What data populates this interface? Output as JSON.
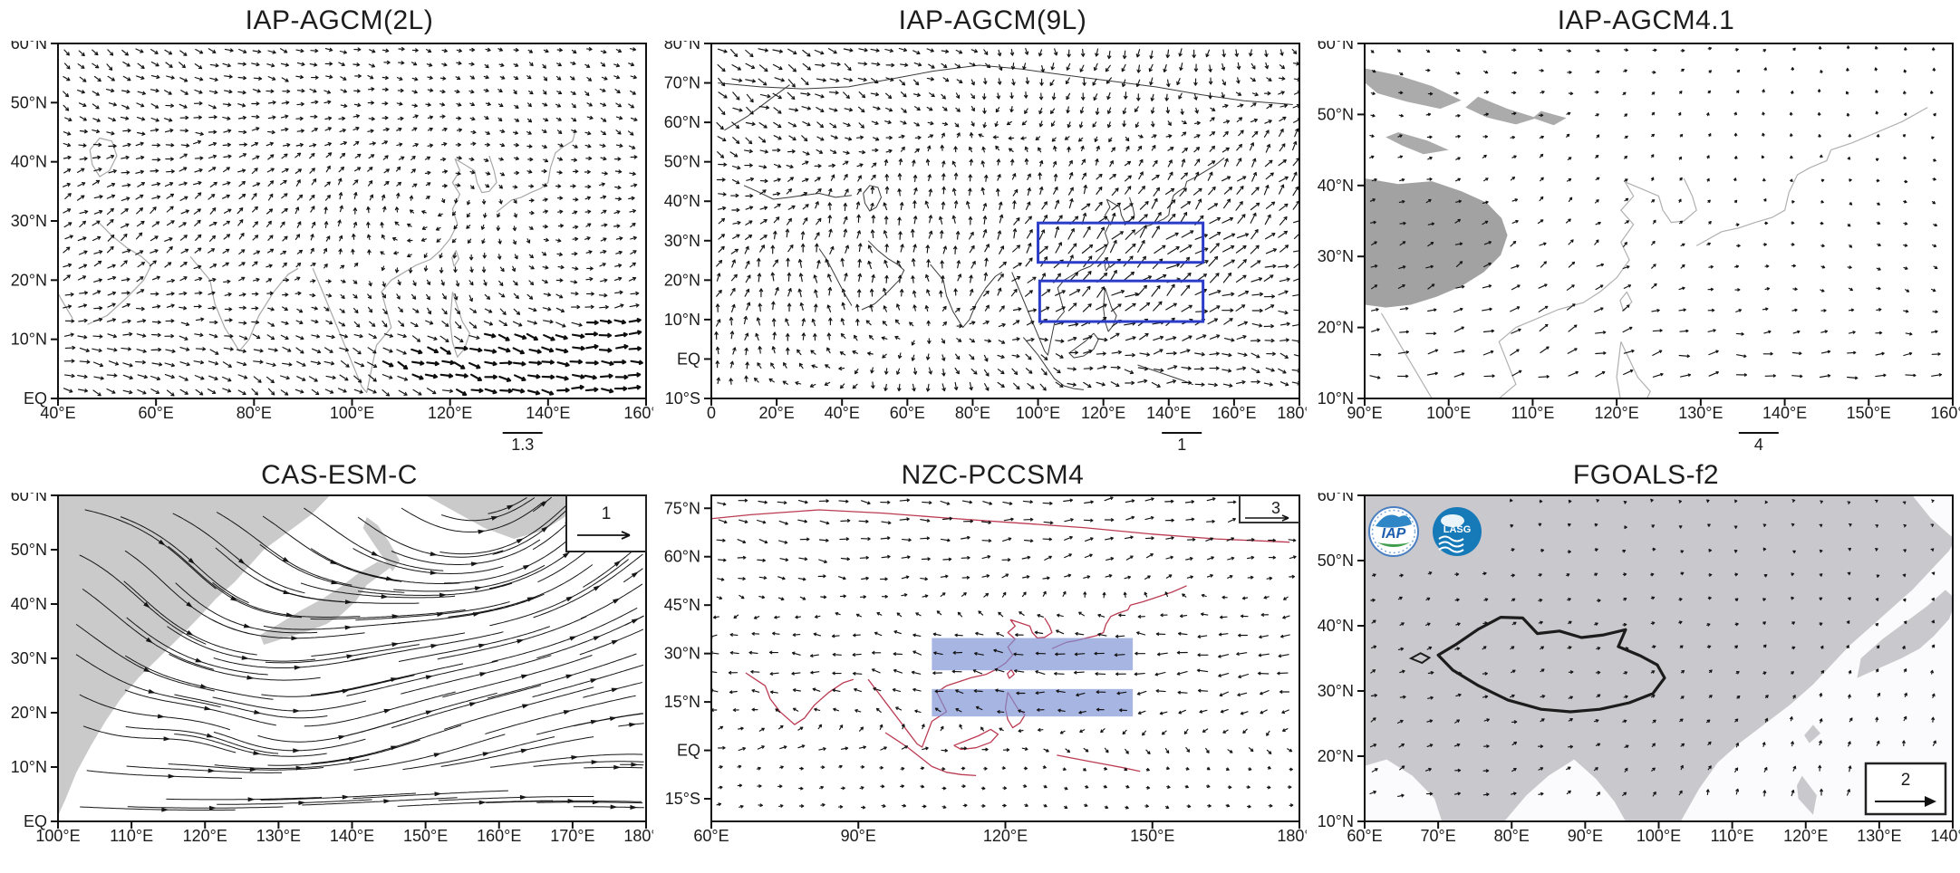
{
  "figure": {
    "description": "Six-panel comparison figure of simulated low-level wind vector fields over the Asian monsoon region from six IAP climate models",
    "grid": "2 rows x 3 columns",
    "background_color": "#ffffff",
    "vector_color": "#141414"
  },
  "chart_data": [
    {
      "type": "scatter",
      "plot_style": "wind vector (quiver) map",
      "title": "IAP-AGCM(2L)",
      "x_axis": {
        "label": "longitude",
        "range": [
          40,
          160
        ],
        "tick_values": [
          40,
          60,
          80,
          100,
          120,
          140,
          160
        ],
        "tick_labels": [
          "40°E",
          "60°E",
          "80°E",
          "100°E",
          "120°E",
          "140°E",
          "160°E"
        ]
      },
      "y_axis": {
        "label": "latitude",
        "range": [
          0,
          60
        ],
        "tick_values": [
          0,
          10,
          20,
          30,
          40,
          50,
          60
        ],
        "tick_labels": [
          "EQ",
          "10°N",
          "20°N",
          "30°N",
          "40°N",
          "50°N",
          "60°N"
        ]
      },
      "reference_vector": {
        "value": "1.3",
        "position": "bar below axis near 133°E"
      },
      "map_features": {
        "coastline_color": "#a8a8a8",
        "land_fill": "none"
      },
      "annotations": [],
      "grid_on": false,
      "legend_position": "none"
    },
    {
      "type": "scatter",
      "plot_style": "wind vector (quiver) map",
      "title": "IAP-AGCM(9L)",
      "x_axis": {
        "label": "longitude",
        "range": [
          0,
          180
        ],
        "tick_values": [
          0,
          20,
          40,
          60,
          80,
          100,
          120,
          140,
          160,
          180
        ],
        "tick_labels": [
          "0",
          "20°E",
          "40°E",
          "60°E",
          "80°E",
          "100°E",
          "120°E",
          "140°E",
          "160°E",
          "180°E"
        ]
      },
      "y_axis": {
        "label": "latitude",
        "range": [
          -10,
          80
        ],
        "tick_values": [
          -10,
          0,
          10,
          20,
          30,
          40,
          50,
          60,
          70,
          80
        ],
        "tick_labels": [
          "10°S",
          "EQ",
          "10°N",
          "20°N",
          "30°N",
          "40°N",
          "50°N",
          "60°N",
          "70°N",
          "80°N"
        ]
      },
      "reference_vector": {
        "value": "1",
        "position": "bar below axis near 135°E"
      },
      "map_features": {
        "coastline_color": "#3a3a3a",
        "land_fill": "none"
      },
      "annotations": [
        {
          "type": "box-outline",
          "color": "#2b3cc8",
          "lon": [
            100,
            150.5
          ],
          "lat": [
            24.5,
            34.5
          ]
        },
        {
          "type": "box-outline",
          "color": "#2b3cc8",
          "lon": [
            100.5,
            150.5
          ],
          "lat": [
            9.5,
            19.8
          ]
        }
      ],
      "grid_on": false,
      "legend_position": "none"
    },
    {
      "type": "scatter",
      "plot_style": "wind vector (quiver) map",
      "title": "IAP-AGCM4.1",
      "x_axis": {
        "label": "longitude",
        "range": [
          90,
          160
        ],
        "tick_values": [
          90,
          100,
          110,
          120,
          130,
          140,
          150,
          160
        ],
        "tick_labels": [
          "90°E",
          "100°E",
          "110°E",
          "120°E",
          "130°E",
          "140°E",
          "150°E",
          "160°E"
        ]
      },
      "y_axis": {
        "label": "latitude",
        "range": [
          10,
          60
        ],
        "tick_values": [
          10,
          20,
          30,
          40,
          50,
          60
        ],
        "tick_labels": [
          "10°N",
          "20°N",
          "30°N",
          "40°N",
          "50°N",
          "60°N"
        ]
      },
      "reference_vector": {
        "value": "4",
        "position": "bar below axis near 142°E"
      },
      "map_features": {
        "coastline_color": "#b0b0b0",
        "land_fill": "#a2a2a2 (Tibetan Plateau and northern terrain patches shaded gray)"
      },
      "annotations": [],
      "grid_on": false,
      "legend_position": "none"
    },
    {
      "type": "scatter",
      "plot_style": "streamline wind map",
      "title": "CAS-ESM-C",
      "x_axis": {
        "label": "longitude",
        "range": [
          100,
          180
        ],
        "tick_values": [
          100,
          110,
          120,
          130,
          140,
          150,
          160,
          170,
          180
        ],
        "tick_labels": [
          "100°E",
          "110°E",
          "120°E",
          "130°E",
          "140°E",
          "150°E",
          "160°E",
          "170°E",
          "180°E"
        ]
      },
      "y_axis": {
        "label": "latitude",
        "range": [
          0,
          60
        ],
        "tick_values": [
          0,
          10,
          20,
          30,
          40,
          50,
          60
        ],
        "tick_labels": [
          "EQ",
          "10°N",
          "20°N",
          "30°N",
          "40°N",
          "50°N",
          "60°N"
        ]
      },
      "reference_vector": {
        "value": "1",
        "position": "boxed inset with arrow, top-right corner"
      },
      "map_features": {
        "coastline_color": "none",
        "land_fill": "#cacaca"
      },
      "annotations": [],
      "grid_on": false,
      "legend_position": "top-right inset"
    },
    {
      "type": "scatter",
      "plot_style": "wind vector (quiver) map",
      "title": "NZC-PCCSM4",
      "x_axis": {
        "label": "longitude",
        "range": [
          60,
          180
        ],
        "tick_values": [
          60,
          90,
          120,
          150,
          180
        ],
        "tick_labels": [
          "60°E",
          "90°E",
          "120°E",
          "150°E",
          "180°E"
        ]
      },
      "y_axis": {
        "label": "latitude",
        "range": [
          -22,
          79
        ],
        "tick_values": [
          -15,
          0,
          15,
          30,
          45,
          60,
          75
        ],
        "tick_labels": [
          "15°S",
          "EQ",
          "15°N",
          "30°N",
          "45°N",
          "60°N",
          "75°N"
        ]
      },
      "reference_vector": {
        "value": "3",
        "position": "corner notch with arrow, top-right"
      },
      "map_features": {
        "coastline_color": "#bb3b52",
        "land_fill": "none"
      },
      "annotations": [
        {
          "type": "box-filled",
          "color": "#7d92d5",
          "lon": [
            105,
            146
          ],
          "lat": [
            24.8,
            34.8
          ]
        },
        {
          "type": "box-filled",
          "color": "#7d92d5",
          "lon": [
            105,
            146
          ],
          "lat": [
            10.5,
            19
          ]
        }
      ],
      "grid_on": false,
      "legend_position": "top-right inset"
    },
    {
      "type": "scatter",
      "plot_style": "wind vector (quiver) map",
      "title": "FGOALS-f2",
      "x_axis": {
        "label": "longitude",
        "range": [
          60,
          140
        ],
        "tick_values": [
          60,
          70,
          80,
          90,
          100,
          110,
          120,
          130,
          140
        ],
        "tick_labels": [
          "60°E",
          "70°E",
          "80°E",
          "90°E",
          "100°E",
          "110°E",
          "120°E",
          "130°E",
          "140°E"
        ]
      },
      "y_axis": {
        "label": "latitude",
        "range": [
          10,
          60
        ],
        "tick_values": [
          10,
          20,
          30,
          40,
          50,
          60
        ],
        "tick_labels": [
          "10°N",
          "20°N",
          "30°N",
          "40°N",
          "50°N",
          "60°N"
        ]
      },
      "reference_vector": {
        "value": "2",
        "position": "boxed inset with arrow, bottom-right"
      },
      "map_features": {
        "coastline_color": "none",
        "land_fill": "#c9c8cc",
        "outline": "thick black Tibetan Plateau contour"
      },
      "annotations": [
        {
          "type": "thick-outline",
          "feature": "Tibetan Plateau",
          "color": "#1c1c1c"
        }
      ],
      "logos": [
        {
          "name": "IAP",
          "colors": [
            "#2e86c6",
            "#3f9e4d",
            "#ffffff"
          ]
        },
        {
          "name": "LASG",
          "colors": [
            "#1679b8",
            "#ffffff"
          ]
        }
      ],
      "grid_on": false,
      "legend_position": "bottom-right inset"
    }
  ]
}
